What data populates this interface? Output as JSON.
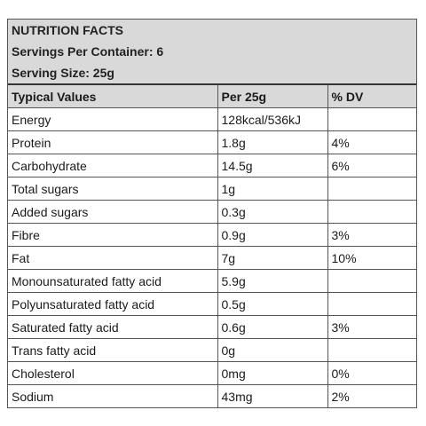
{
  "header": {
    "title": "NUTRITION FACTS",
    "servings": "Servings Per Container: 6",
    "serving_size": "Serving Size: 25g"
  },
  "table": {
    "columns": [
      "Typical Values",
      "Per 25g",
      "% DV"
    ],
    "rows": [
      [
        "Energy",
        "128kcal/536kJ",
        ""
      ],
      [
        "Protein",
        "1.8g",
        "4%"
      ],
      [
        "Carbohydrate",
        "14.5g",
        "6%"
      ],
      [
        "Total sugars",
        "1g",
        ""
      ],
      [
        "Added sugars",
        "0.3g",
        ""
      ],
      [
        "Fibre",
        "0.9g",
        "3%"
      ],
      [
        "Fat",
        "7g",
        "10%"
      ],
      [
        "Monounsaturated fatty acid",
        "5.9g",
        ""
      ],
      [
        "Polyunsaturated fatty acid",
        "0.5g",
        ""
      ],
      [
        "Saturated fatty acid",
        "0.6g",
        "3%"
      ],
      [
        "Trans fatty acid",
        "0g",
        ""
      ],
      [
        "Cholesterol",
        "0mg",
        "0%"
      ],
      [
        "Sodium",
        "43mg",
        "2%"
      ]
    ]
  }
}
